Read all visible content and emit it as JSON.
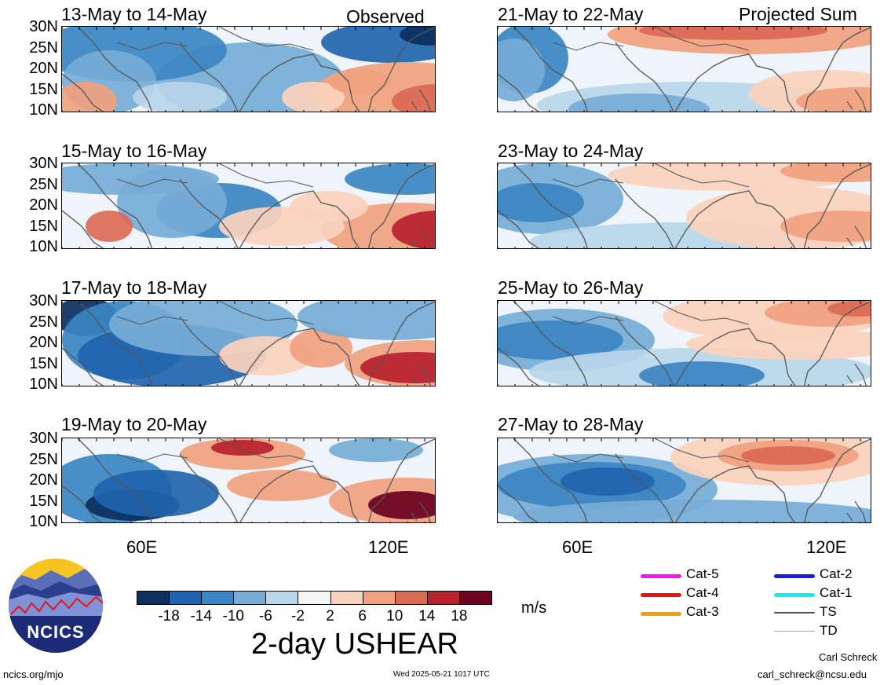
{
  "header": {
    "left_label": "Observed",
    "right_label": "Projected Sum"
  },
  "panels_left": [
    {
      "title": "13-May to 14-May"
    },
    {
      "title": "15-May to 16-May"
    },
    {
      "title": "17-May to 18-May"
    },
    {
      "title": "19-May to 20-May"
    }
  ],
  "panels_right": [
    {
      "title": "21-May to 22-May"
    },
    {
      "title": "23-May to 24-May"
    },
    {
      "title": "25-May to 26-May"
    },
    {
      "title": "27-May to 28-May"
    }
  ],
  "y_ticks": [
    "30N",
    "25N",
    "20N",
    "15N",
    "10N"
  ],
  "x_ticks": [
    "60E",
    "120E"
  ],
  "colorbar": {
    "ticks": [
      "-18",
      "-14",
      "-10",
      "-6",
      "-2",
      "2",
      "6",
      "10",
      "14",
      "18"
    ],
    "colors": [
      "#0b2f5e",
      "#1f64ad",
      "#3b86c2",
      "#76acd6",
      "#b9d6ea",
      "#f5f5f5",
      "#fbd2bd",
      "#f0a17f",
      "#db6a55",
      "#b9212d",
      "#6a0220"
    ],
    "unit": "m/s",
    "title": "2-day USHEAR"
  },
  "legend": [
    {
      "label": "Cat-5",
      "color": "#ff10ff"
    },
    {
      "label": "Cat-4",
      "color": "#ee1111"
    },
    {
      "label": "Cat-3",
      "color": "#f5a000"
    },
    {
      "label": "Cat-2",
      "color": "#1020e0"
    },
    {
      "label": "Cat-1",
      "color": "#10f0f0"
    },
    {
      "label": "TS",
      "color": "#555555"
    },
    {
      "label": "TD",
      "color": "#aaaaaa"
    }
  ],
  "footer": {
    "logo_text": "NCICS",
    "url": "ncics.org/mjo",
    "timestamp": "Wed 2025-05-21 1017 UTC",
    "author": "Carl Schreck",
    "email": "carl_schreck@ncsu.edu"
  }
}
